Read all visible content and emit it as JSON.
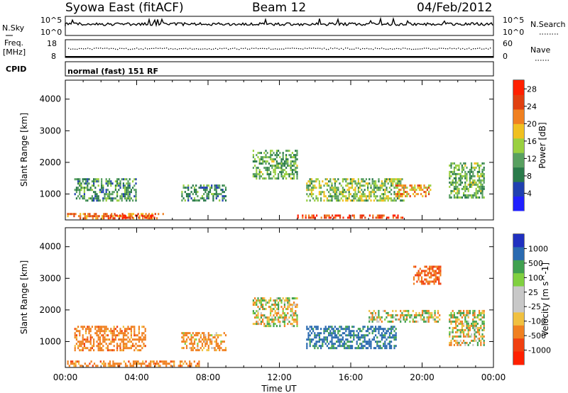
{
  "header": {
    "station": "Syowa East (fitACF)",
    "beam": "Beam 12",
    "date": "04/Feb/2012"
  },
  "noise_panel": {
    "left_label": "N.Sky",
    "right_label": "N.Search",
    "left_ticks": [
      "10^5",
      "10^0"
    ],
    "right_ticks": [
      "10^5",
      "10^0"
    ]
  },
  "freq_panel": {
    "left_label_line1": "Freq.",
    "left_label_line2": "[MHz]",
    "right_label": "Nave",
    "left_ticks": [
      "18",
      "8"
    ],
    "right_ticks": [
      "60",
      "0"
    ]
  },
  "cpid_panel": {
    "label": "CPID",
    "text": "normal (fast) 151 RF"
  },
  "colors": {
    "power_scale": [
      "#2020ff",
      "#2040b0",
      "#2a7a4a",
      "#58a060",
      "#9ad040",
      "#f0c020",
      "#f08020",
      "#e04010",
      "#ff2000"
    ],
    "velocity_scale": [
      "#ff2000",
      "#f04010",
      "#f08020",
      "#f0c040",
      "#c8c8c8",
      "#c8c8c8",
      "#80d040",
      "#40a050",
      "#2a6ab0",
      "#2030c0"
    ]
  },
  "chart_data": [
    {
      "type": "heatmap",
      "name": "power",
      "xlabel": "Time UT",
      "ylabel": "Slant Range [km]",
      "x_ticks": [
        "00:00",
        "04:00",
        "08:00",
        "12:00",
        "16:00",
        "20:00",
        "00:00"
      ],
      "x_range_hours": [
        0,
        24
      ],
      "y_ticks": [
        1000,
        2000,
        3000,
        4000
      ],
      "ylim": [
        180,
        4600
      ],
      "colorbar": {
        "label": "Power [dB]",
        "ticks": [
          4,
          8,
          12,
          16,
          20,
          24,
          28
        ],
        "range": [
          0,
          30
        ]
      },
      "regions": [
        {
          "t": [
            0.1,
            5.5
          ],
          "r": [
            250,
            400
          ],
          "value": 22
        },
        {
          "t": [
            2.5,
            5.0
          ],
          "r": [
            250,
            350
          ],
          "value": 28
        },
        {
          "t": [
            13.0,
            19.0
          ],
          "r": [
            250,
            350
          ],
          "value": 26
        },
        {
          "t": [
            0.5,
            4.0
          ],
          "r": [
            800,
            1500
          ],
          "value": 10
        },
        {
          "t": [
            6.5,
            9.0
          ],
          "r": [
            800,
            1300
          ],
          "value": 10
        },
        {
          "t": [
            10.5,
            13.0
          ],
          "r": [
            1500,
            2400
          ],
          "value": 12
        },
        {
          "t": [
            13.5,
            19.0
          ],
          "r": [
            800,
            1500
          ],
          "value": 14
        },
        {
          "t": [
            18.5,
            20.5
          ],
          "r": [
            900,
            1300
          ],
          "value": 20
        },
        {
          "t": [
            21.5,
            23.5
          ],
          "r": [
            900,
            2000
          ],
          "value": 12
        }
      ]
    },
    {
      "type": "heatmap",
      "name": "velocity",
      "xlabel": "Time UT",
      "ylabel": "Slant Range [km]",
      "x_ticks": [
        "00:00",
        "04:00",
        "08:00",
        "12:00",
        "16:00",
        "20:00",
        "00:00"
      ],
      "x_range_hours": [
        0,
        24
      ],
      "y_ticks": [
        1000,
        2000,
        3000,
        4000
      ],
      "ylim": [
        180,
        4600
      ],
      "colorbar": {
        "label": "Velocity [m s^-1]",
        "ticks": [
          "1000",
          "500",
          "100",
          "25",
          "-25",
          "-100",
          "-500",
          "-1000"
        ]
      },
      "regions": [
        {
          "t": [
            0.1,
            7.5
          ],
          "r": [
            250,
            400
          ],
          "value": -300
        },
        {
          "t": [
            0.5,
            4.5
          ],
          "r": [
            700,
            1500
          ],
          "value": -300
        },
        {
          "t": [
            6.5,
            9.0
          ],
          "r": [
            700,
            1300
          ],
          "value": -200
        },
        {
          "t": [
            10.5,
            13.0
          ],
          "r": [
            1500,
            2400
          ],
          "value": 0
        },
        {
          "t": [
            13.5,
            18.5
          ],
          "r": [
            800,
            1500
          ],
          "value": 600
        },
        {
          "t": [
            17.0,
            21.0
          ],
          "r": [
            1600,
            2000
          ],
          "value": 0
        },
        {
          "t": [
            19.5,
            21.0
          ],
          "r": [
            2800,
            3400
          ],
          "value": -400
        },
        {
          "t": [
            21.5,
            23.5
          ],
          "r": [
            900,
            2000
          ],
          "value": 0
        }
      ]
    }
  ]
}
